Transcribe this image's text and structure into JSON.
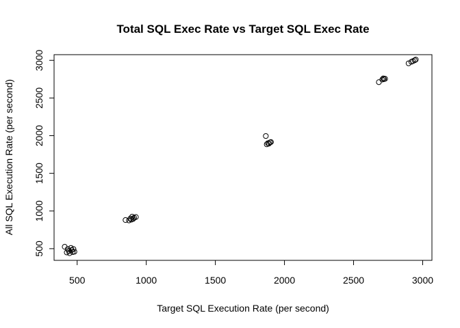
{
  "chart_data": {
    "type": "scatter",
    "title": "Total SQL Exec Rate vs Target SQL Exec Rate",
    "xlabel": "Target SQL Execution Rate (per second)",
    "ylabel": "All SQL Execution Rate (per second)",
    "xlim": [
      333,
      3067
    ],
    "ylim": [
      345,
      3075
    ],
    "xticks": [
      500,
      1000,
      1500,
      2000,
      2500,
      3000
    ],
    "yticks": [
      500,
      1000,
      1500,
      2000,
      2500,
      3000
    ],
    "grid": false,
    "legend": "none",
    "point_color": "#000000",
    "points": [
      {
        "x": 410,
        "y": 525
      },
      {
        "x": 425,
        "y": 450
      },
      {
        "x": 432,
        "y": 495
      },
      {
        "x": 440,
        "y": 470
      },
      {
        "x": 445,
        "y": 440
      },
      {
        "x": 455,
        "y": 510
      },
      {
        "x": 460,
        "y": 480
      },
      {
        "x": 468,
        "y": 455
      },
      {
        "x": 473,
        "y": 495
      },
      {
        "x": 480,
        "y": 460
      },
      {
        "x": 850,
        "y": 880
      },
      {
        "x": 875,
        "y": 875
      },
      {
        "x": 885,
        "y": 900
      },
      {
        "x": 892,
        "y": 885
      },
      {
        "x": 898,
        "y": 925
      },
      {
        "x": 905,
        "y": 895
      },
      {
        "x": 912,
        "y": 910
      },
      {
        "x": 925,
        "y": 920
      },
      {
        "x": 1865,
        "y": 1995
      },
      {
        "x": 1872,
        "y": 1885
      },
      {
        "x": 1880,
        "y": 1900
      },
      {
        "x": 1888,
        "y": 1895
      },
      {
        "x": 1895,
        "y": 1910
      },
      {
        "x": 1902,
        "y": 1915
      },
      {
        "x": 2683,
        "y": 2710
      },
      {
        "x": 2708,
        "y": 2745
      },
      {
        "x": 2715,
        "y": 2760
      },
      {
        "x": 2720,
        "y": 2750
      },
      {
        "x": 2728,
        "y": 2755
      },
      {
        "x": 2898,
        "y": 2960
      },
      {
        "x": 2918,
        "y": 2980
      },
      {
        "x": 2930,
        "y": 2990
      },
      {
        "x": 2942,
        "y": 3000
      },
      {
        "x": 2950,
        "y": 3010
      }
    ]
  }
}
